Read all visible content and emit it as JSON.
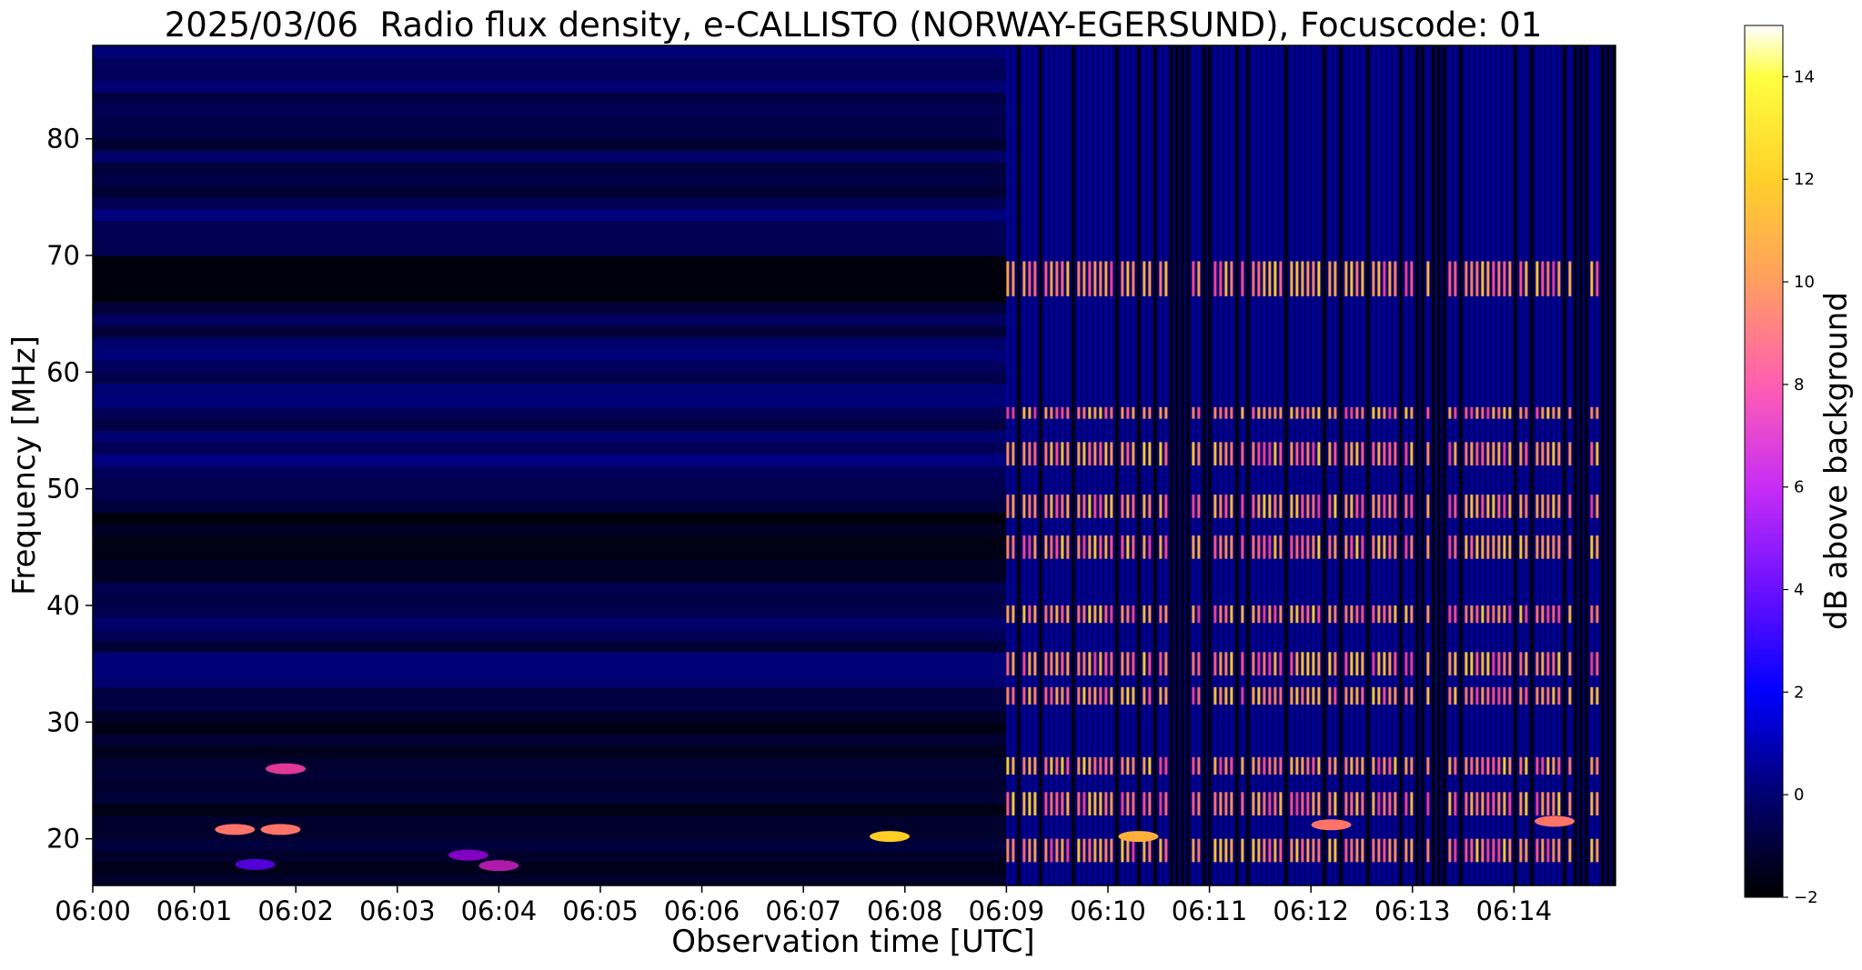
{
  "chart_data": {
    "type": "heatmap",
    "title": "2025/03/06  Radio flux density, e-CALLISTO (NORWAY-EGERSUND), Focuscode: 01",
    "xlabel": "Observation time [UTC]",
    "ylabel": "Frequency [MHz]",
    "x_unit": "minutes after 06:00 UTC",
    "xlim": [
      0,
      15
    ],
    "ylim": [
      16,
      88
    ],
    "x_ticks": [
      {
        "value": 0,
        "label": "06:00"
      },
      {
        "value": 1,
        "label": "06:01"
      },
      {
        "value": 2,
        "label": "06:02"
      },
      {
        "value": 3,
        "label": "06:03"
      },
      {
        "value": 4,
        "label": "06:04"
      },
      {
        "value": 5,
        "label": "06:05"
      },
      {
        "value": 6,
        "label": "06:06"
      },
      {
        "value": 7,
        "label": "06:07"
      },
      {
        "value": 8,
        "label": "06:08"
      },
      {
        "value": 9,
        "label": "06:09"
      },
      {
        "value": 10,
        "label": "06:10"
      },
      {
        "value": 11,
        "label": "06:11"
      },
      {
        "value": 12,
        "label": "06:12"
      },
      {
        "value": 13,
        "label": "06:13"
      },
      {
        "value": 14,
        "label": "06:14"
      }
    ],
    "y_ticks": [
      {
        "value": 20,
        "label": "20"
      },
      {
        "value": 30,
        "label": "30"
      },
      {
        "value": 40,
        "label": "40"
      },
      {
        "value": 50,
        "label": "50"
      },
      {
        "value": 60,
        "label": "60"
      },
      {
        "value": 70,
        "label": "70"
      },
      {
        "value": 80,
        "label": "80"
      }
    ],
    "colorbar": {
      "label": "dB above background",
      "range": [
        -2,
        15
      ],
      "colormap": "gnuplot2",
      "ticks": [
        {
          "value": -2,
          "label": "−2"
        },
        {
          "value": 0,
          "label": "0"
        },
        {
          "value": 2,
          "label": "2"
        },
        {
          "value": 4,
          "label": "4"
        },
        {
          "value": 6,
          "label": "6"
        },
        {
          "value": 8,
          "label": "8"
        },
        {
          "value": 10,
          "label": "10"
        },
        {
          "value": 12,
          "label": "12"
        },
        {
          "value": 14,
          "label": "14"
        }
      ]
    },
    "regimes": [
      {
        "x_range": [
          0,
          9
        ],
        "description_level_db": [
          -1.5,
          1
        ]
      },
      {
        "x_range": [
          9,
          15
        ],
        "description_level_db": [
          -2,
          12
        ]
      }
    ],
    "intensity_note_bands_after_0609_mhz": [
      [
        66.5,
        69.5
      ],
      [
        56,
        57
      ],
      [
        52,
        54
      ],
      [
        47.5,
        49.5
      ],
      [
        44,
        46
      ],
      [
        38.5,
        40
      ],
      [
        34,
        36
      ],
      [
        31.5,
        33
      ],
      [
        25.5,
        27
      ],
      [
        22,
        24
      ],
      [
        18,
        20
      ]
    ],
    "bursts": [
      {
        "t": 7.85,
        "f": 20.2,
        "db": 12
      },
      {
        "t": 10.3,
        "f": 20.2,
        "db": 11
      },
      {
        "t": 12.2,
        "f": 21.2,
        "db": 9
      },
      {
        "t": 14.4,
        "f": 21.5,
        "db": 9
      },
      {
        "t": 1.4,
        "f": 20.8,
        "db": 9
      },
      {
        "t": 1.85,
        "f": 20.8,
        "db": 9
      },
      {
        "t": 1.9,
        "f": 26.0,
        "db": 7
      },
      {
        "t": 4.0,
        "f": 17.7,
        "db": 6
      },
      {
        "t": 3.7,
        "f": 18.6,
        "db": 5
      },
      {
        "t": 1.6,
        "f": 17.8,
        "db": 4
      }
    ]
  }
}
